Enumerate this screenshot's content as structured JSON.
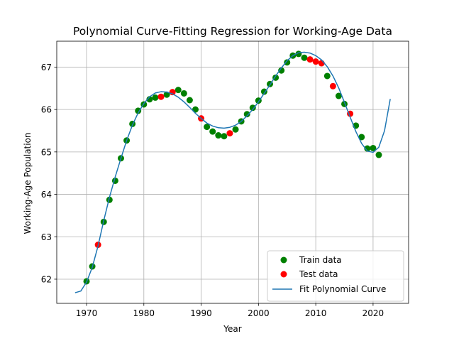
{
  "chart_data": {
    "type": "scatter",
    "title": "Polynomial Curve-Fitting Regression for Working-Age Data",
    "xlabel": "Year",
    "ylabel": "Working-Age Population",
    "xlim": [
      1964.8,
      2026.2
    ],
    "ylim": [
      61.43,
      67.61
    ],
    "xticks": [
      1970,
      1980,
      1990,
      2000,
      2010,
      2020
    ],
    "yticks": [
      62,
      63,
      64,
      65,
      66,
      67
    ],
    "grid": true,
    "legend_position": "lower-right",
    "series": [
      {
        "name": "Train data",
        "kind": "scatter",
        "color": "#008000",
        "x": [
          1970,
          1971,
          1973,
          1974,
          1975,
          1976,
          1977,
          1978,
          1979,
          1980,
          1981,
          1982,
          1984,
          1986,
          1987,
          1988,
          1989,
          1991,
          1992,
          1993,
          1994,
          1996,
          1997,
          1998,
          1999,
          2000,
          2001,
          2002,
          2003,
          2004,
          2005,
          2006,
          2007,
          2008,
          2012,
          2014,
          2015,
          2017,
          2018,
          2019,
          2020,
          2021
        ],
        "y": [
          61.95,
          62.3,
          63.35,
          63.87,
          64.32,
          64.85,
          65.27,
          65.66,
          65.97,
          66.12,
          66.24,
          66.28,
          66.35,
          66.46,
          66.38,
          66.22,
          66.0,
          65.59,
          65.48,
          65.39,
          65.37,
          65.53,
          65.72,
          65.89,
          66.04,
          66.21,
          66.42,
          66.6,
          66.75,
          66.92,
          67.11,
          67.27,
          67.31,
          67.22,
          66.79,
          66.32,
          66.13,
          65.62,
          65.35,
          65.08,
          65.09,
          64.93
        ]
      },
      {
        "name": "Test data",
        "kind": "scatter",
        "color": "#ff0000",
        "x": [
          1972,
          1983,
          1985,
          1990,
          1995,
          2009,
          2010,
          2011,
          2013,
          2016
        ],
        "y": [
          62.81,
          66.3,
          66.41,
          65.79,
          65.44,
          67.18,
          67.13,
          67.09,
          66.55,
          65.9
        ]
      },
      {
        "name": "Fit Polynomial Curve",
        "kind": "line",
        "color": "#1f77b4",
        "x": [
          1968,
          1969,
          1970,
          1971,
          1972,
          1973,
          1974,
          1975,
          1976,
          1977,
          1978,
          1979,
          1980,
          1981,
          1982,
          1983,
          1984,
          1985,
          1986,
          1987,
          1988,
          1989,
          1990,
          1991,
          1992,
          1993,
          1994,
          1995,
          1996,
          1997,
          1998,
          1999,
          2000,
          2001,
          2002,
          2003,
          2004,
          2005,
          2006,
          2007,
          2008,
          2009,
          2010,
          2011,
          2012,
          2013,
          2014,
          2015,
          2016,
          2017,
          2018,
          2019,
          2020,
          2021,
          2022,
          2023
        ],
        "y": [
          61.68,
          61.72,
          61.93,
          62.28,
          62.78,
          63.38,
          63.93,
          64.41,
          64.85,
          65.27,
          65.63,
          65.92,
          66.14,
          66.3,
          66.39,
          66.42,
          66.41,
          66.37,
          66.29,
          66.18,
          66.05,
          65.91,
          65.79,
          65.68,
          65.61,
          65.57,
          65.56,
          65.58,
          65.63,
          65.72,
          65.85,
          66.0,
          66.18,
          66.38,
          66.58,
          66.79,
          66.98,
          67.15,
          67.27,
          67.34,
          67.35,
          67.33,
          67.27,
          67.17,
          67.01,
          66.79,
          66.51,
          66.17,
          65.82,
          65.48,
          65.2,
          65.02,
          64.99,
          65.11,
          65.5,
          66.25
        ]
      }
    ]
  }
}
